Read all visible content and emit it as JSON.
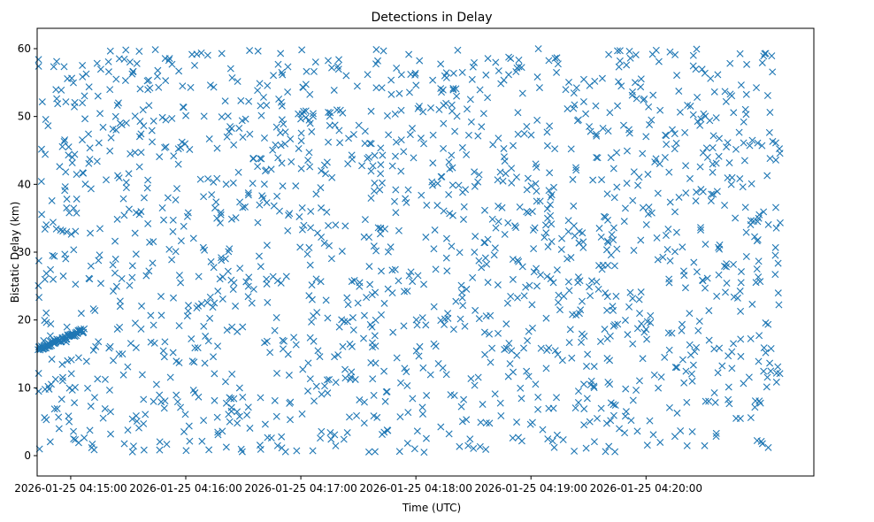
{
  "chart_data": {
    "type": "scatter",
    "title": "Detections in Delay",
    "xlabel": "Time (UTC)",
    "ylabel": "Bistatic Delay (km)",
    "marker": "x",
    "color": "#1f77b4",
    "xlim_seconds": [
      -17.5,
      387.5
    ],
    "ylim": [
      -3,
      63
    ],
    "x_ticks": [
      {
        "t": 0,
        "label": "2026-01-25 04:15:00"
      },
      {
        "t": 60,
        "label": "2026-01-25 04:16:00"
      },
      {
        "t": 120,
        "label": "2026-01-25 04:17:00"
      },
      {
        "t": 180,
        "label": "2026-01-25 04:18:00"
      },
      {
        "t": 240,
        "label": "2026-01-25 04:19:00"
      },
      {
        "t": 300,
        "label": "2026-01-25 04:20:00"
      }
    ],
    "y_ticks": [
      {
        "v": 0,
        "label": "0"
      },
      {
        "v": 10,
        "label": "10"
      },
      {
        "v": 20,
        "label": "20"
      },
      {
        "v": 30,
        "label": "30"
      },
      {
        "v": 40,
        "label": "40"
      },
      {
        "v": 50,
        "label": "50"
      },
      {
        "v": 60,
        "label": "60"
      }
    ],
    "time_origin": "2026-01-25 04:15:00",
    "time_span_seconds": [
      -17,
      370
    ],
    "noise_detections": {
      "count": 1650,
      "delay_range_km": [
        0.5,
        60
      ]
    },
    "track": {
      "description": "target track: delay rising from ~15.7 km to ~18.5 km",
      "t_start": -17,
      "t_end": 7,
      "delay_start": 15.7,
      "delay_end": 18.5,
      "points": 70
    }
  }
}
